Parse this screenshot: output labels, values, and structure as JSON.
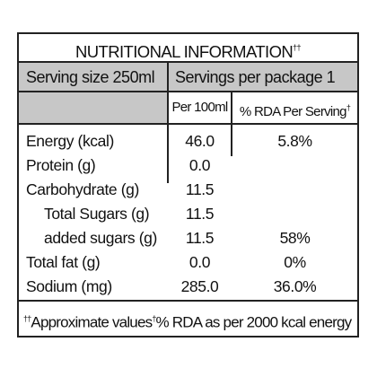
{
  "label": {
    "title": "NUTRITIONAL INFORMATION",
    "title_mark": "††",
    "serving_size": "Serving size 250ml",
    "servings_per_package": "Servings per package 1",
    "col_per_100": "Per 100ml",
    "col_rda": "% RDA Per Serving",
    "col_rda_mark": "†",
    "rows": [
      {
        "name": "Energy (kcal)",
        "per_100": "46.0",
        "rda": "5.8%"
      },
      {
        "name": "Protein (g)",
        "per_100": "0.0",
        "rda": ""
      },
      {
        "name": "Carbohydrate (g)",
        "per_100": "11.5",
        "rda": ""
      },
      {
        "name": "Total Sugars (g)",
        "per_100": "11.5",
        "rda": ""
      },
      {
        "name": "added sugars (g)",
        "per_100": "11.5",
        "rda": "58%"
      },
      {
        "name": "Total fat (g)",
        "per_100": "0.0",
        "rda": "0%"
      },
      {
        "name": "Sodium (mg)",
        "per_100": "285.0",
        "rda": "36.0%"
      }
    ],
    "footer_mark_1": "††",
    "footer_text_1": "Approximate values",
    "footer_mark_2": "†",
    "footer_text_2": "% RDA as per 2000 kcal energy"
  }
}
